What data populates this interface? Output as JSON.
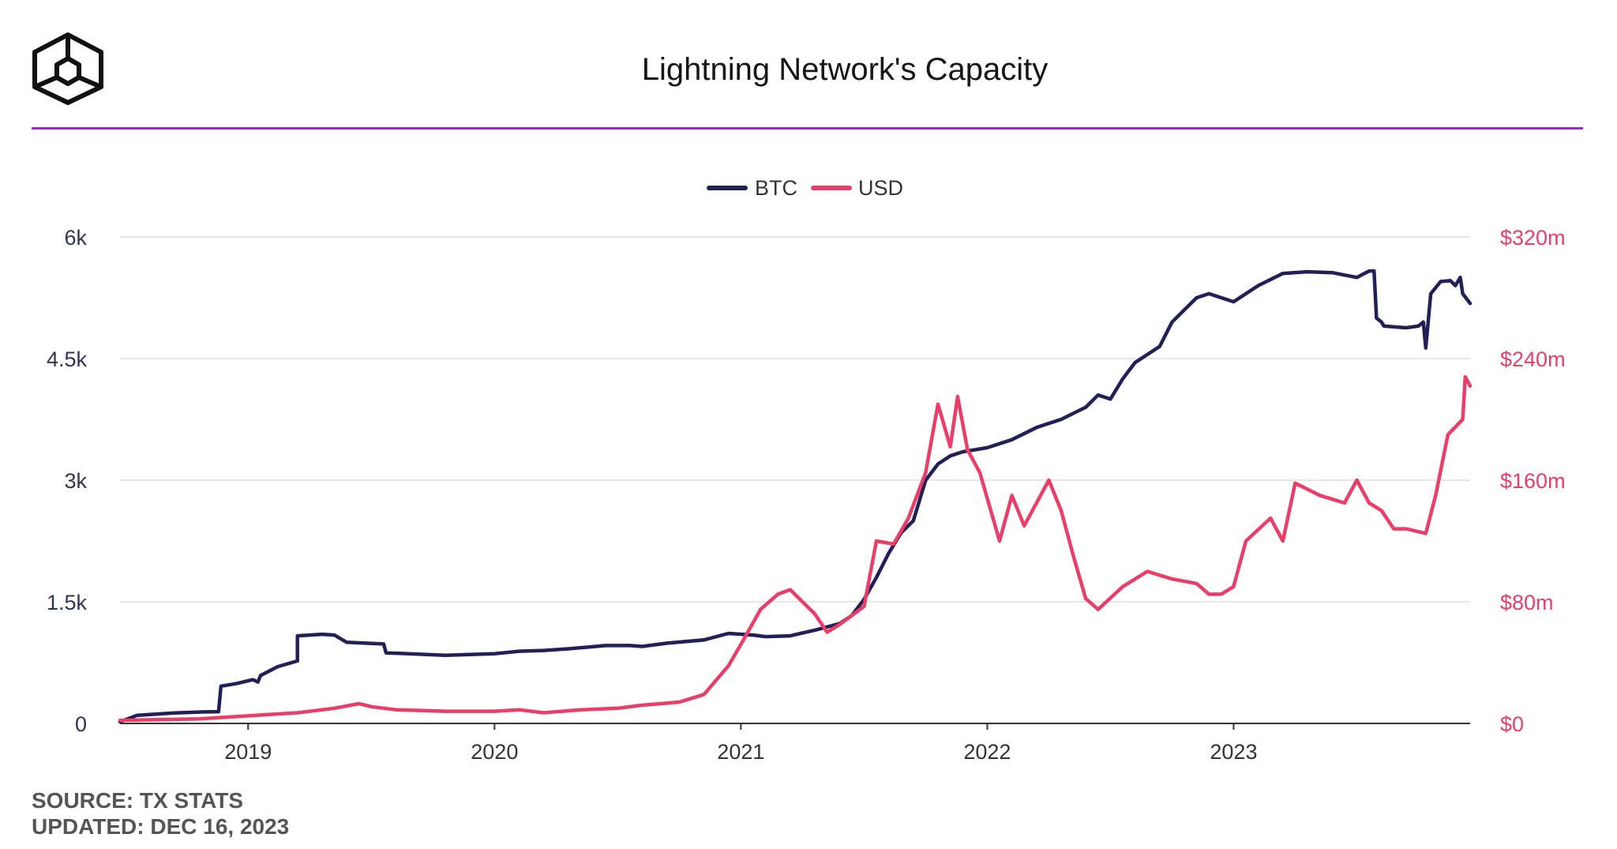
{
  "header": {
    "logo_icon": "cube-logo-icon",
    "title": "Lightning Network's Capacity"
  },
  "footer": {
    "source": "SOURCE: TX STATS",
    "updated": "UPDATED: DEC 16, 2023"
  },
  "colors": {
    "btc": "#231f57",
    "usd": "#ea3d68",
    "accent_rule": "#9b2cc4",
    "grid": "#e6e6e6"
  },
  "chart_data": {
    "type": "line",
    "legend": {
      "position": "top-center",
      "entries": [
        "BTC",
        "USD"
      ]
    },
    "grid": true,
    "x_ticks": [
      "2019",
      "2020",
      "2021",
      "2022",
      "2023"
    ],
    "x_range": [
      2018.48,
      2023.96
    ],
    "y_left": {
      "ticks": [
        "0",
        "1.5k",
        "3k",
        "4.5k",
        "6k"
      ],
      "range": [
        0,
        6000
      ],
      "unit": "BTC"
    },
    "y_right": {
      "ticks": [
        "$0",
        "$80m",
        "$160m",
        "$240m",
        "$320m"
      ],
      "range": [
        0,
        320
      ],
      "unit": "USD millions"
    },
    "series": [
      {
        "name": "BTC",
        "axis": "left",
        "points": [
          [
            2018.48,
            20
          ],
          [
            2018.55,
            100
          ],
          [
            2018.6,
            110
          ],
          [
            2018.7,
            130
          ],
          [
            2018.8,
            140
          ],
          [
            2018.88,
            145
          ],
          [
            2018.89,
            460
          ],
          [
            2018.95,
            490
          ],
          [
            2019.02,
            540
          ],
          [
            2019.04,
            510
          ],
          [
            2019.05,
            590
          ],
          [
            2019.12,
            700
          ],
          [
            2019.2,
            770
          ],
          [
            2019.2,
            1080
          ],
          [
            2019.3,
            1100
          ],
          [
            2019.35,
            1090
          ],
          [
            2019.4,
            1000
          ],
          [
            2019.55,
            980
          ],
          [
            2019.56,
            870
          ],
          [
            2019.65,
            860
          ],
          [
            2019.8,
            840
          ],
          [
            2020.0,
            860
          ],
          [
            2020.1,
            890
          ],
          [
            2020.2,
            900
          ],
          [
            2020.3,
            920
          ],
          [
            2020.45,
            960
          ],
          [
            2020.55,
            960
          ],
          [
            2020.6,
            950
          ],
          [
            2020.7,
            990
          ],
          [
            2020.85,
            1030
          ],
          [
            2020.95,
            1110
          ],
          [
            2021.05,
            1090
          ],
          [
            2021.1,
            1070
          ],
          [
            2021.2,
            1080
          ],
          [
            2021.3,
            1150
          ],
          [
            2021.4,
            1230
          ],
          [
            2021.45,
            1330
          ],
          [
            2021.5,
            1530
          ],
          [
            2021.55,
            1800
          ],
          [
            2021.6,
            2100
          ],
          [
            2021.65,
            2350
          ],
          [
            2021.7,
            2500
          ],
          [
            2021.75,
            3000
          ],
          [
            2021.8,
            3200
          ],
          [
            2021.85,
            3300
          ],
          [
            2021.9,
            3350
          ],
          [
            2022.0,
            3400
          ],
          [
            2022.1,
            3500
          ],
          [
            2022.2,
            3650
          ],
          [
            2022.3,
            3750
          ],
          [
            2022.4,
            3900
          ],
          [
            2022.45,
            4050
          ],
          [
            2022.5,
            4000
          ],
          [
            2022.55,
            4250
          ],
          [
            2022.6,
            4450
          ],
          [
            2022.7,
            4650
          ],
          [
            2022.75,
            4950
          ],
          [
            2022.8,
            5100
          ],
          [
            2022.85,
            5250
          ],
          [
            2022.9,
            5300
          ],
          [
            2023.0,
            5200
          ],
          [
            2023.1,
            5400
          ],
          [
            2023.2,
            5550
          ],
          [
            2023.3,
            5570
          ],
          [
            2023.4,
            5560
          ],
          [
            2023.5,
            5500
          ],
          [
            2023.55,
            5580
          ],
          [
            2023.57,
            5580
          ],
          [
            2023.58,
            5000
          ],
          [
            2023.6,
            4950
          ],
          [
            2023.61,
            4900
          ],
          [
            2023.7,
            4880
          ],
          [
            2023.75,
            4900
          ],
          [
            2023.77,
            4950
          ],
          [
            2023.78,
            4630
          ],
          [
            2023.8,
            5300
          ],
          [
            2023.84,
            5450
          ],
          [
            2023.88,
            5460
          ],
          [
            2023.9,
            5400
          ],
          [
            2023.92,
            5500
          ],
          [
            2023.93,
            5300
          ],
          [
            2023.96,
            5180
          ]
        ]
      },
      {
        "name": "USD",
        "axis": "right",
        "points": [
          [
            2018.48,
            2
          ],
          [
            2018.8,
            3
          ],
          [
            2019.0,
            5
          ],
          [
            2019.2,
            7
          ],
          [
            2019.35,
            10
          ],
          [
            2019.45,
            13
          ],
          [
            2019.5,
            11
          ],
          [
            2019.6,
            9
          ],
          [
            2019.8,
            8
          ],
          [
            2020.0,
            8
          ],
          [
            2020.1,
            9
          ],
          [
            2020.2,
            7
          ],
          [
            2020.35,
            9
          ],
          [
            2020.5,
            10
          ],
          [
            2020.6,
            12
          ],
          [
            2020.75,
            14
          ],
          [
            2020.85,
            19
          ],
          [
            2020.95,
            38
          ],
          [
            2021.0,
            52
          ],
          [
            2021.08,
            75
          ],
          [
            2021.15,
            85
          ],
          [
            2021.2,
            88
          ],
          [
            2021.3,
            72
          ],
          [
            2021.35,
            60
          ],
          [
            2021.4,
            65
          ],
          [
            2021.5,
            77
          ],
          [
            2021.55,
            120
          ],
          [
            2021.62,
            118
          ],
          [
            2021.68,
            135
          ],
          [
            2021.75,
            165
          ],
          [
            2021.8,
            210
          ],
          [
            2021.85,
            182
          ],
          [
            2021.88,
            215
          ],
          [
            2021.92,
            180
          ],
          [
            2021.97,
            165
          ],
          [
            2022.05,
            120
          ],
          [
            2022.1,
            150
          ],
          [
            2022.15,
            130
          ],
          [
            2022.25,
            160
          ],
          [
            2022.3,
            140
          ],
          [
            2022.35,
            110
          ],
          [
            2022.4,
            82
          ],
          [
            2022.45,
            75
          ],
          [
            2022.55,
            90
          ],
          [
            2022.65,
            100
          ],
          [
            2022.75,
            95
          ],
          [
            2022.85,
            92
          ],
          [
            2022.9,
            85
          ],
          [
            2022.95,
            85
          ],
          [
            2023.0,
            90
          ],
          [
            2023.05,
            120
          ],
          [
            2023.15,
            135
          ],
          [
            2023.2,
            120
          ],
          [
            2023.25,
            158
          ],
          [
            2023.35,
            150
          ],
          [
            2023.45,
            145
          ],
          [
            2023.5,
            160
          ],
          [
            2023.55,
            145
          ],
          [
            2023.6,
            140
          ],
          [
            2023.65,
            128
          ],
          [
            2023.7,
            128
          ],
          [
            2023.78,
            125
          ],
          [
            2023.82,
            150
          ],
          [
            2023.87,
            190
          ],
          [
            2023.93,
            200
          ],
          [
            2023.94,
            228
          ],
          [
            2023.96,
            222
          ]
        ]
      }
    ]
  }
}
